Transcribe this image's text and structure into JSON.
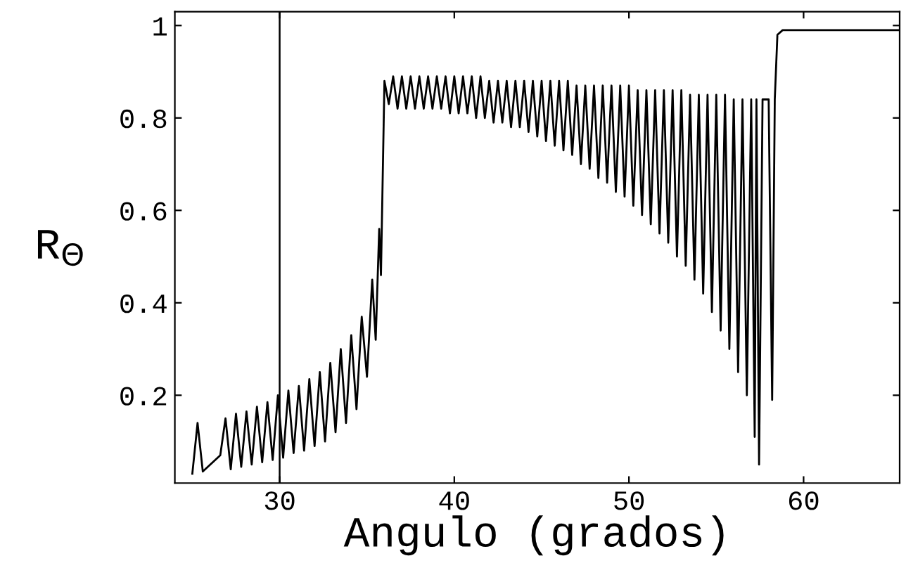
{
  "chart_data": {
    "type": "line",
    "xlabel": "Angulo (grados)",
    "ylabel": "R$_{Θ}$",
    "xlim": [
      24,
      65.5
    ],
    "ylim": [
      0.01,
      1.03
    ],
    "xticks": [
      30,
      40,
      50,
      60
    ],
    "yticks": [
      0.2,
      0.4,
      0.6,
      0.8,
      1
    ],
    "grid": false,
    "legend": false,
    "marker": "none",
    "line_style": "solid",
    "ref_lines": [
      {
        "axis": "x",
        "value": 30,
        "color": "#000000"
      }
    ],
    "series": [
      {
        "color": "#000000",
        "x": [
          25.0,
          25.3,
          25.6,
          26.6,
          26.9,
          27.2,
          27.5,
          27.8,
          28.1,
          28.4,
          28.7,
          29.0,
          29.3,
          29.6,
          29.9,
          30.2,
          30.5,
          30.8,
          31.1,
          31.4,
          31.7,
          32.0,
          32.3,
          32.6,
          32.9,
          33.2,
          33.5,
          33.8,
          34.1,
          34.4,
          34.7,
          35.0,
          35.3,
          35.5,
          35.7,
          35.8,
          36.0,
          36.25,
          36.5,
          36.75,
          37.0,
          37.25,
          37.5,
          37.75,
          38.0,
          38.25,
          38.5,
          38.75,
          39.0,
          39.25,
          39.5,
          39.75,
          40.0,
          40.25,
          40.5,
          40.75,
          41.0,
          41.25,
          41.5,
          41.75,
          42.0,
          42.25,
          42.5,
          42.75,
          43.0,
          43.25,
          43.5,
          43.75,
          44.0,
          44.25,
          44.5,
          44.75,
          45.0,
          45.25,
          45.5,
          45.75,
          46.0,
          46.25,
          46.5,
          46.75,
          47.0,
          47.25,
          47.5,
          47.75,
          48.0,
          48.25,
          48.5,
          48.75,
          49.0,
          49.25,
          49.5,
          49.75,
          50.0,
          50.25,
          50.5,
          50.75,
          51.0,
          51.25,
          51.5,
          51.75,
          52.0,
          52.25,
          52.5,
          52.75,
          53.0,
          53.25,
          53.5,
          53.75,
          54.0,
          54.25,
          54.5,
          54.75,
          55.0,
          55.25,
          55.5,
          55.75,
          56.0,
          56.25,
          56.5,
          56.75,
          57.0,
          57.2,
          57.3,
          57.45,
          57.65,
          58.0,
          58.2,
          58.35,
          58.5,
          58.8,
          65.5
        ],
        "values": [
          0.03,
          0.14,
          0.035,
          0.07,
          0.15,
          0.04,
          0.16,
          0.045,
          0.165,
          0.05,
          0.175,
          0.055,
          0.185,
          0.06,
          0.2,
          0.065,
          0.21,
          0.075,
          0.22,
          0.08,
          0.235,
          0.09,
          0.25,
          0.1,
          0.27,
          0.12,
          0.3,
          0.14,
          0.33,
          0.17,
          0.37,
          0.24,
          0.45,
          0.32,
          0.56,
          0.46,
          0.88,
          0.83,
          0.89,
          0.82,
          0.89,
          0.82,
          0.89,
          0.82,
          0.89,
          0.82,
          0.89,
          0.82,
          0.89,
          0.82,
          0.89,
          0.81,
          0.89,
          0.81,
          0.89,
          0.81,
          0.89,
          0.8,
          0.89,
          0.8,
          0.88,
          0.79,
          0.88,
          0.79,
          0.88,
          0.78,
          0.88,
          0.78,
          0.88,
          0.77,
          0.88,
          0.76,
          0.88,
          0.75,
          0.88,
          0.74,
          0.88,
          0.73,
          0.88,
          0.72,
          0.87,
          0.7,
          0.87,
          0.69,
          0.87,
          0.67,
          0.87,
          0.66,
          0.87,
          0.64,
          0.87,
          0.63,
          0.87,
          0.61,
          0.86,
          0.59,
          0.86,
          0.57,
          0.86,
          0.55,
          0.86,
          0.53,
          0.86,
          0.5,
          0.86,
          0.48,
          0.85,
          0.45,
          0.85,
          0.42,
          0.85,
          0.38,
          0.85,
          0.34,
          0.85,
          0.3,
          0.84,
          0.25,
          0.84,
          0.2,
          0.84,
          0.11,
          0.84,
          0.05,
          0.84,
          0.84,
          0.19,
          0.84,
          0.98,
          0.99,
          0.99
        ]
      }
    ]
  }
}
